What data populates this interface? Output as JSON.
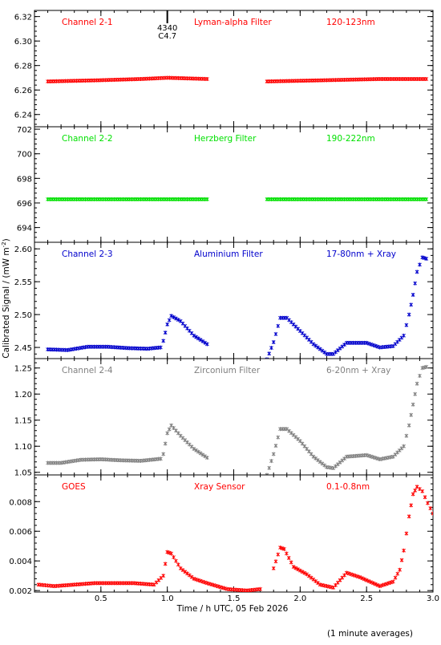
{
  "figure": {
    "ylabel": "Calibrated Signal / (mW m",
    "ylabel_sup": "-2",
    "ylabel_close": ")",
    "xlabel": "Time / h UTC, 05 Feb 2026",
    "footnote": "(1 minute averages)",
    "marker": "*",
    "xlim": [
      0.0,
      3.0
    ],
    "xticks": [
      0.5,
      1.0,
      1.5,
      2.0,
      2.5,
      3.0
    ],
    "xtick_labels": [
      "0.5",
      "1.0",
      "1.5",
      "2.0",
      "2.5",
      "3.0"
    ]
  },
  "chart_data": [
    {
      "type": "scatter",
      "label_left": "Channel 2-1",
      "label_mid": "Lyman-alpha Filter",
      "label_right": "120-123nm",
      "color": "#ff0000",
      "ylim": [
        6.23,
        6.325
      ],
      "yticks": [
        6.24,
        6.26,
        6.28,
        6.3,
        6.32
      ],
      "ytick_labels": [
        "6.24",
        "6.26",
        "6.28",
        "6.30",
        "6.32"
      ],
      "annotation": {
        "x": 1.0,
        "lines": [
          "4340",
          "C4.7"
        ]
      },
      "segments": [
        {
          "x": [
            0.1,
            0.5,
            0.8,
            1.0,
            1.3
          ],
          "y": [
            6.267,
            6.268,
            6.269,
            6.27,
            6.269
          ]
        },
        {
          "x": [
            1.75,
            2.2,
            2.6,
            2.95
          ],
          "y": [
            6.267,
            6.268,
            6.269,
            6.269
          ]
        }
      ]
    },
    {
      "type": "scatter",
      "label_left": "Channel 2-2",
      "label_mid": "Herzberg Filter",
      "label_right": "190-222nm",
      "color": "#00e000",
      "ylim": [
        692.8,
        702.2
      ],
      "yticks": [
        694,
        696,
        698,
        700,
        702
      ],
      "ytick_labels": [
        "694",
        "696",
        "698",
        "700",
        "702"
      ],
      "segments": [
        {
          "x": [
            0.1,
            1.3
          ],
          "y": [
            696.3,
            696.3
          ]
        },
        {
          "x": [
            1.75,
            2.95
          ],
          "y": [
            696.3,
            696.3
          ]
        }
      ]
    },
    {
      "type": "scatter",
      "label_left": "Channel 2-3",
      "label_mid": "Aluminium Filter",
      "label_right": "17-80nm + Xray",
      "color": "#0000cc",
      "ylim": [
        2.433,
        2.61
      ],
      "yticks": [
        2.45,
        2.5,
        2.55,
        2.6
      ],
      "ytick_labels": [
        "2.45",
        "2.50",
        "2.55",
        "2.60"
      ],
      "segments": [
        {
          "x": [
            0.1,
            0.25,
            0.4,
            0.55,
            0.7,
            0.85,
            0.95,
            0.97,
            1.0,
            1.03,
            1.1,
            1.2,
            1.3
          ],
          "y": [
            2.447,
            2.446,
            2.451,
            2.451,
            2.449,
            2.448,
            2.45,
            2.46,
            2.485,
            2.498,
            2.49,
            2.468,
            2.455
          ]
        },
        {
          "x": [
            1.75,
            1.8,
            1.85,
            1.9,
            2.0,
            2.1,
            2.2,
            2.25,
            2.35,
            2.5,
            2.6,
            2.7,
            2.78,
            2.82,
            2.85,
            2.88,
            2.92,
            2.95
          ],
          "y": [
            2.432,
            2.458,
            2.495,
            2.495,
            2.475,
            2.455,
            2.44,
            2.44,
            2.457,
            2.457,
            2.45,
            2.452,
            2.468,
            2.5,
            2.53,
            2.565,
            2.587,
            2.585
          ]
        }
      ]
    },
    {
      "type": "scatter",
      "label_left": "Channel 2-4",
      "label_mid": "Zirconium Filter",
      "label_right": "6-20nm + Xray",
      "color": "#808080",
      "ylim": [
        1.045,
        1.268
      ],
      "yticks": [
        1.05,
        1.1,
        1.15,
        1.2,
        1.25
      ],
      "ytick_labels": [
        "1.05",
        "1.10",
        "1.15",
        "1.20",
        "1.25"
      ],
      "segments": [
        {
          "x": [
            0.1,
            0.2,
            0.35,
            0.5,
            0.65,
            0.8,
            0.95,
            0.97,
            1.0,
            1.03,
            1.1,
            1.2,
            1.3
          ],
          "y": [
            1.068,
            1.068,
            1.074,
            1.075,
            1.073,
            1.072,
            1.076,
            1.085,
            1.125,
            1.14,
            1.12,
            1.095,
            1.078
          ]
        },
        {
          "x": [
            1.75,
            1.8,
            1.85,
            1.9,
            2.0,
            2.1,
            2.2,
            2.25,
            2.35,
            2.5,
            2.6,
            2.7,
            2.78,
            2.82,
            2.85,
            2.88,
            2.92,
            2.95
          ],
          "y": [
            1.045,
            1.085,
            1.133,
            1.133,
            1.11,
            1.08,
            1.06,
            1.058,
            1.08,
            1.083,
            1.075,
            1.08,
            1.1,
            1.14,
            1.18,
            1.22,
            1.25,
            1.252
          ]
        }
      ]
    },
    {
      "type": "scatter",
      "label_left": "GOES",
      "label_mid": "Xray Sensor",
      "label_right": "0.1-0.8nm",
      "color": "#ff0000",
      "ylim": [
        0.0019,
        0.0098
      ],
      "yticks": [
        0.002,
        0.004,
        0.006,
        0.008
      ],
      "ytick_labels": [
        "0.002",
        "0.004",
        "0.006",
        "0.008"
      ],
      "segments": [
        {
          "x": [
            0.03,
            0.15,
            0.3,
            0.45,
            0.6,
            0.75,
            0.9,
            0.97,
            1.0,
            1.03,
            1.1,
            1.2,
            1.3,
            1.45,
            1.6,
            1.7
          ],
          "y": [
            0.0024,
            0.0023,
            0.0024,
            0.0025,
            0.0025,
            0.0025,
            0.0024,
            0.003,
            0.0046,
            0.0045,
            0.0035,
            0.0028,
            0.0025,
            0.0021,
            0.002,
            0.0021
          ]
        },
        {
          "x": [
            1.8,
            1.85,
            1.88,
            1.95,
            2.05,
            2.15,
            2.25,
            2.35,
            2.45,
            2.6,
            2.7,
            2.75,
            2.78,
            2.82,
            2.85,
            2.88,
            2.92,
            2.96,
            3.0
          ],
          "y": [
            0.0035,
            0.0049,
            0.0048,
            0.0036,
            0.0031,
            0.0024,
            0.0022,
            0.0032,
            0.0029,
            0.0023,
            0.0026,
            0.0034,
            0.0047,
            0.007,
            0.0085,
            0.009,
            0.0087,
            0.0079,
            0.0072
          ]
        }
      ]
    }
  ]
}
